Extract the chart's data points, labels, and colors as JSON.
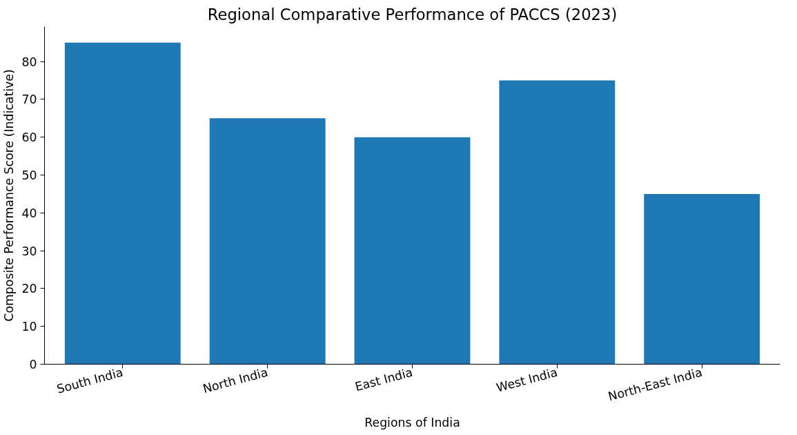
{
  "chart_data": {
    "type": "bar",
    "title": "Regional Comparative Performance of PACCS (2023)",
    "xlabel": "Regions of India",
    "ylabel": "Composite Performance Score (Indicative)",
    "categories": [
      "South India",
      "North India",
      "East India",
      "West India",
      "North-East India"
    ],
    "series": [
      {
        "color": "#1f77b4",
        "values": [
          85,
          65,
          60,
          75,
          45
        ]
      }
    ],
    "ylim": [
      0,
      89.25
    ],
    "yticks": [
      0,
      10,
      20,
      30,
      40,
      50,
      60,
      70,
      80
    ]
  }
}
